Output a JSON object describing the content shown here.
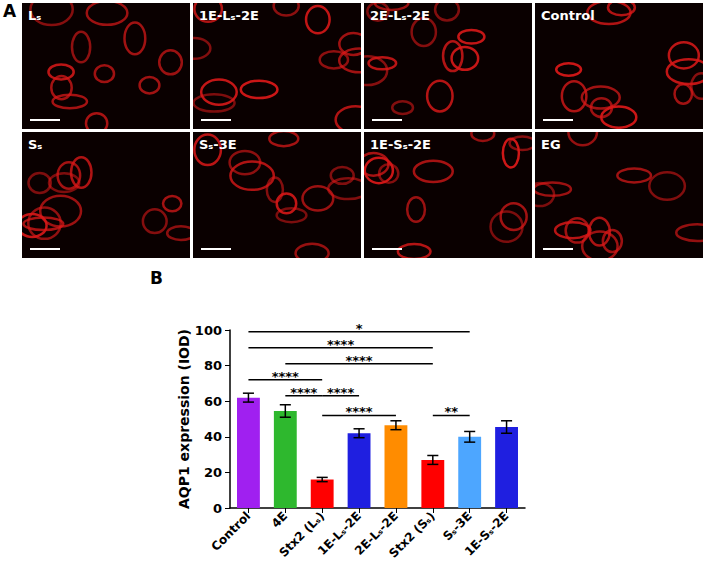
{
  "panel_a": {
    "letter": "A",
    "images": [
      "Lₛ",
      "1E-Lₛ-2E",
      "2E-Lₛ-2E",
      "Control",
      "Sₛ",
      "Sₛ-3E",
      "1E-Sₛ-2E",
      "EG"
    ]
  },
  "panel_b": {
    "letter": "B"
  },
  "chart_data": {
    "type": "bar",
    "categories": [
      "Control",
      "4E",
      "Stx2 (Lₛ)",
      "1E-Lₛ-2E",
      "2E-Lₛ-2E",
      "Stx2 (Sₛ)",
      "Sₛ-3E",
      "1E-Sₛ-2E"
    ],
    "values": [
      62,
      54.5,
      16,
      42,
      46.5,
      27,
      40,
      45.5
    ],
    "errors": [
      2.5,
      3.5,
      1.2,
      2.5,
      2.5,
      2.5,
      3,
      3.5
    ],
    "colors": [
      "#a020f0",
      "#2eb82e",
      "#ff0000",
      "#1f1fe0",
      "#ff8c00",
      "#ff0000",
      "#4da6ff",
      "#1f1fe0"
    ],
    "ylabel": "AQP1 expression (IOD)",
    "ylim": [
      0,
      100
    ],
    "yticks": [
      0,
      20,
      40,
      60,
      80,
      100
    ],
    "grid": false,
    "significance": [
      {
        "from": "Control",
        "to": "Sₛ-3E",
        "label": "*",
        "y": 99
      },
      {
        "from": "Control",
        "to": "Stx2 (Sₛ)",
        "label": "****",
        "y": 90
      },
      {
        "from": "4E",
        "to": "Stx2 (Sₛ)",
        "label": "****",
        "y": 81
      },
      {
        "from": "Control",
        "to": "Stx2 (Lₛ)",
        "label": "****",
        "y": 72
      },
      {
        "from": "4E",
        "to": "Stx2 (Lₛ)",
        "label": "****",
        "y": 63
      },
      {
        "from": "Stx2 (Lₛ)",
        "to": "1E-Lₛ-2E",
        "label": "****",
        "y": 63
      },
      {
        "from": "Stx2 (Lₛ)",
        "to": "2E-Lₛ-2E",
        "label": "****",
        "y": 52
      },
      {
        "from": "Stx2 (Sₛ)",
        "to": "Sₛ-3E",
        "label": "**",
        "y": 52
      }
    ]
  }
}
